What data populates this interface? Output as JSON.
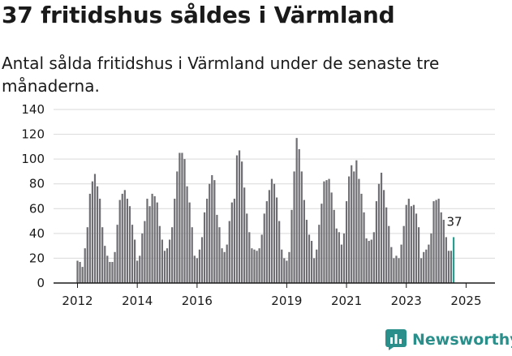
{
  "header": {
    "title": "37 fritidshus såldes i Värmland",
    "subtitle": "Antal sålda fritidshus i Värmland under de senaste tre månaderna."
  },
  "brand": {
    "name": "Newsworthy",
    "color": "#2a8f8a"
  },
  "colors": {
    "bar": "#6e6e73",
    "highlight": "#2a9d8f",
    "grid": "#d9d9d9",
    "axis": "#1a1a1a"
  },
  "chart_data": {
    "type": "bar",
    "grid": true,
    "ylim": [
      0,
      140
    ],
    "yticks": [
      0,
      20,
      40,
      60,
      80,
      100,
      120,
      140
    ],
    "xticks": [
      {
        "label": "2012",
        "index": 0
      },
      {
        "label": "2014",
        "index": 24
      },
      {
        "label": "2016",
        "index": 48
      },
      {
        "label": "2019",
        "index": 84
      },
      {
        "label": "2021",
        "index": 108
      },
      {
        "label": "2023",
        "index": 132
      },
      {
        "label": "2025",
        "index": 156
      }
    ],
    "x_start": "2012-01",
    "interval": "month",
    "values": [
      18,
      17,
      13,
      28,
      45,
      72,
      82,
      88,
      78,
      68,
      45,
      30,
      22,
      17,
      17,
      25,
      47,
      67,
      72,
      75,
      68,
      62,
      47,
      35,
      18,
      22,
      40,
      50,
      68,
      62,
      72,
      70,
      65,
      46,
      35,
      26,
      28,
      35,
      45,
      68,
      90,
      105,
      105,
      100,
      78,
      65,
      45,
      22,
      20,
      27,
      37,
      57,
      68,
      80,
      87,
      83,
      55,
      45,
      28,
      25,
      31,
      50,
      65,
      68,
      103,
      107,
      98,
      77,
      56,
      41,
      28,
      27,
      26,
      28,
      39,
      56,
      66,
      75,
      84,
      80,
      69,
      50,
      27,
      20,
      18,
      25,
      59,
      90,
      117,
      108,
      90,
      67,
      51,
      39,
      34,
      20,
      27,
      47,
      64,
      82,
      83,
      84,
      73,
      59,
      44,
      41,
      31,
      40,
      66,
      86,
      95,
      90,
      99,
      84,
      72,
      57,
      36,
      34,
      35,
      41,
      66,
      80,
      89,
      75,
      61,
      46,
      29,
      20,
      22,
      20,
      31,
      46,
      63,
      68,
      62,
      63,
      56,
      45,
      20,
      25,
      27,
      31,
      40,
      66,
      67,
      68,
      57,
      51,
      37,
      26,
      26,
      37
    ],
    "highlight_last": 1,
    "last_label": "37"
  }
}
